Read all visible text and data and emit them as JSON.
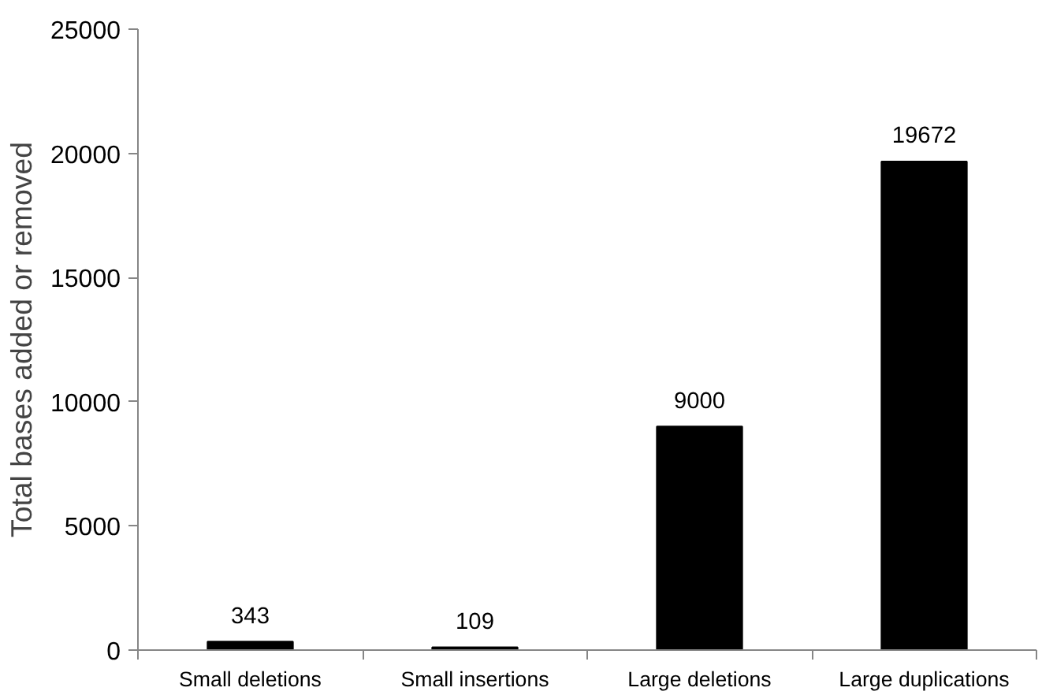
{
  "chart_data": {
    "type": "bar",
    "ylabel": "Total bases added or removed",
    "categories": [
      "Small deletions",
      "Small insertions",
      "Large deletions",
      "Large duplications"
    ],
    "values": [
      343,
      109,
      9000,
      19672
    ],
    "color": "#000000",
    "ylim": [
      0,
      25000
    ],
    "yticks": [
      0,
      5000,
      10000,
      15000,
      20000,
      25000
    ],
    "grid": false,
    "data_labels": true
  }
}
